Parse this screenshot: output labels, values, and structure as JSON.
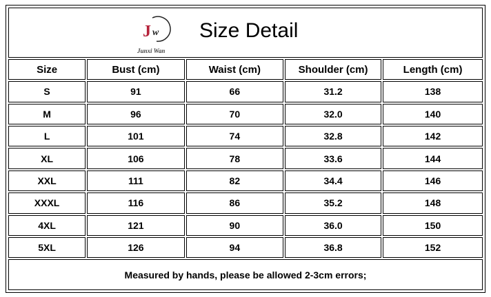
{
  "title": "Size Detail",
  "logo": {
    "monogram": "JW",
    "brand": "Junxi Wan",
    "color": "#b5223a"
  },
  "columns": [
    "Size",
    "Bust (cm)",
    "Waist (cm)",
    "Shoulder (cm)",
    "Length (cm)"
  ],
  "rows": [
    [
      "S",
      "91",
      "66",
      "31.2",
      "138"
    ],
    [
      "M",
      "96",
      "70",
      "32.0",
      "140"
    ],
    [
      "L",
      "101",
      "74",
      "32.8",
      "142"
    ],
    [
      "XL",
      "106",
      "78",
      "33.6",
      "144"
    ],
    [
      "XXL",
      "111",
      "82",
      "34.4",
      "146"
    ],
    [
      "XXXL",
      "116",
      "86",
      "35.2",
      "148"
    ],
    [
      "4XL",
      "121",
      "90",
      "36.0",
      "150"
    ],
    [
      "5XL",
      "126",
      "94",
      "36.8",
      "152"
    ]
  ],
  "footer": "Measured by hands, please be allowed 2-3cm errors;"
}
